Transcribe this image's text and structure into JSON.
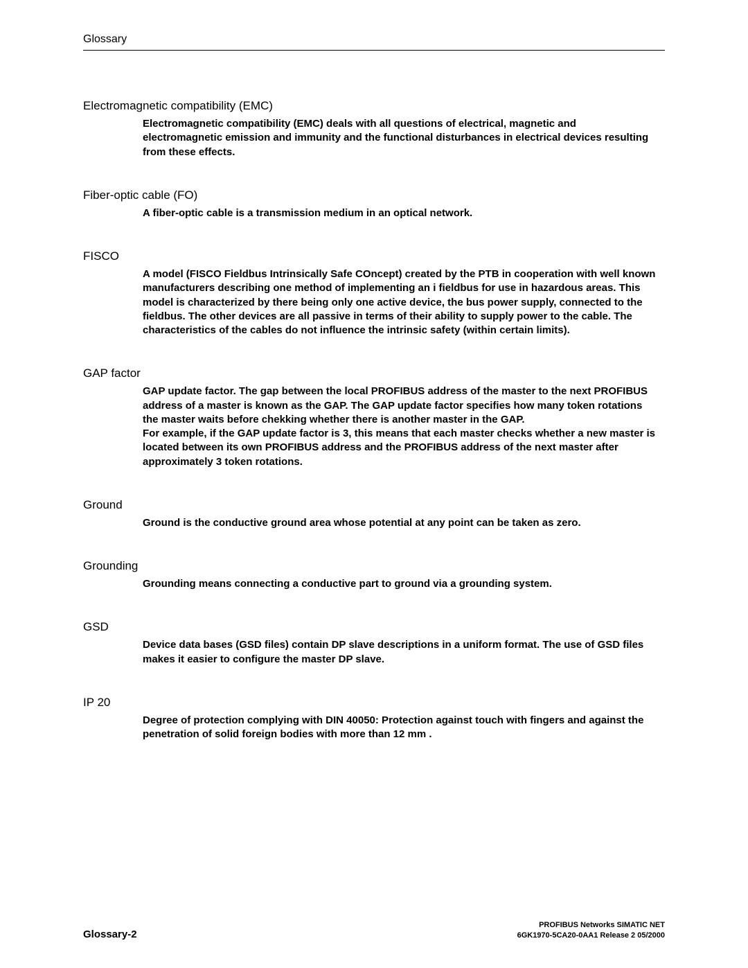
{
  "header": {
    "section": "Glossary"
  },
  "entries": [
    {
      "term": "Electromagnetic compatibility (EMC)",
      "definition": "Electromagnetic compatibility (EMC) deals with all questions of electrical, magnetic and electromagnetic emission and immunity and the functional disturbances in electrical devices resulting from these effects."
    },
    {
      "term": "Fiber-optic cable (FO)",
      "definition": "A fiber-optic cable is a transmission medium in an optical network."
    },
    {
      "term": "FISCO",
      "definition": "A model (FISCO  Fieldbus Intrinsically Safe COncept) created by the PTB in cooperation with well known manufacturers describing one method of implementing an i fieldbus for use in hazardous areas. This model is characterized by there being only one active device, the bus power supply, connected to the fieldbus. The other devices are all passive in terms of their ability to supply power to the cable. The characteristics of the cables do not influence the intrinsic safety (within certain limits)."
    },
    {
      "term": "GAP factor",
      "definition": "GAP update factor. The gap between the local PROFIBUS address of the master to the next PROFIBUS address of a master is known as the GAP. The GAP update factor specifies how many token rotations the master waits before chekking whether there is another master in the GAP.\nFor example, if the GAP update factor is 3, this means that each master checks whether a new master is located between its own PROFIBUS address and the PROFIBUS address of the next master after approximately 3 token rotations."
    },
    {
      "term": "Ground",
      "definition": "Ground is the conductive ground area whose potential at any point can be taken as zero."
    },
    {
      "term": "Grounding",
      "definition": "Grounding means connecting a conductive part to ground via a grounding system."
    },
    {
      "term": "GSD",
      "definition": "Device data bases (GSD files) contain DP slave descriptions in a uniform format. The use of GSD files makes it easier to configure the master DP slave."
    },
    {
      "term": "IP 20",
      "definition": "Degree of protection complying with DIN 40050: Protection against touch with fingers and against the penetration of solid foreign bodies with more than 12 mm  ."
    }
  ],
  "footer": {
    "page": "Glossary-2",
    "doc_title": "PROFIBUS Networks SIMATIC NET",
    "doc_id": "6GK1970-5CA20-0AA1 Release 2 05/2000"
  }
}
